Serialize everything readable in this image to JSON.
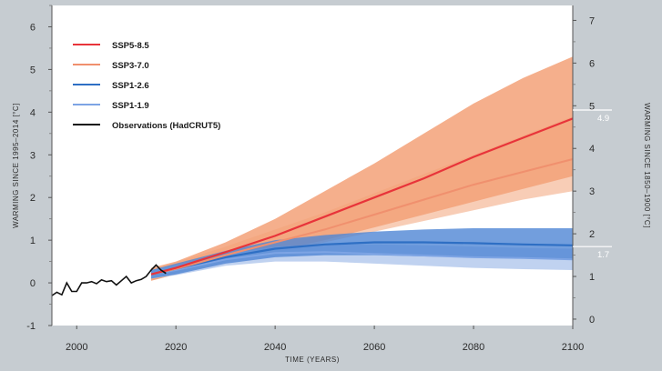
{
  "chart_data": {
    "type": "line",
    "xlabel": "TIME (YEARS)",
    "ylabel_left": "WARMING SINCE 1995–2014 [°C]",
    "ylabel_right": "WARMING SINCE 1850–1900 [°C]",
    "xlim": [
      1995,
      2100
    ],
    "ylim_left": [
      -1,
      6.5
    ],
    "ylim_right": [
      -0.03,
      7.2
    ],
    "right_axis_offset": 0.85,
    "x_ticks": [
      "2000",
      "2020",
      "2040",
      "2060",
      "2080",
      "2100"
    ],
    "y_ticks_left": [
      "-1",
      "0",
      "1",
      "2",
      "3",
      "4",
      "5",
      "6"
    ],
    "y_ticks_right": [
      "0",
      "1",
      "2",
      "3",
      "4",
      "5",
      "6",
      "7"
    ],
    "annotations": [
      {
        "label": "4.9",
        "value_right": 4.9
      },
      {
        "label": "1.7",
        "value_right": 1.7
      }
    ],
    "colors": {
      "ssp585": "#e8343a",
      "ssp370": "#f0906e",
      "ssp126": "#2e6fc4",
      "ssp119": "#7da4e4",
      "obs": "#111111",
      "band_high": "#f3a178",
      "band_high_light": "#f8cab2",
      "band_low": "#4f86d4",
      "band_low_light": "#b9cdee"
    },
    "series": [
      {
        "key": "ssp585",
        "name": "SSP5-8.5",
        "x": [
          2015,
          2020,
          2030,
          2040,
          2050,
          2060,
          2070,
          2080,
          2090,
          2100
        ],
        "values": [
          0.2,
          0.35,
          0.72,
          1.1,
          1.55,
          2.0,
          2.45,
          2.95,
          3.4,
          3.85
        ],
        "band_upper": [
          0.35,
          0.5,
          0.95,
          1.5,
          2.15,
          2.8,
          3.5,
          4.2,
          4.8,
          5.3
        ],
        "band_lower": [
          0.05,
          0.2,
          0.5,
          0.75,
          1.0,
          1.3,
          1.6,
          1.9,
          2.2,
          2.5
        ]
      },
      {
        "key": "ssp370",
        "name": "SSP3-7.0",
        "x": [
          2015,
          2020,
          2030,
          2040,
          2050,
          2060,
          2070,
          2080,
          2090,
          2100
        ],
        "values": [
          0.2,
          0.33,
          0.65,
          0.95,
          1.25,
          1.6,
          1.95,
          2.3,
          2.6,
          2.9
        ],
        "band_upper": [
          0.3,
          0.48,
          0.85,
          1.25,
          1.65,
          2.1,
          2.55,
          3.0,
          3.45,
          3.9
        ],
        "band_lower": [
          0.05,
          0.2,
          0.45,
          0.7,
          0.95,
          1.2,
          1.45,
          1.7,
          1.95,
          2.15
        ]
      },
      {
        "key": "ssp126",
        "name": "SSP1-2.6",
        "x": [
          2015,
          2020,
          2030,
          2040,
          2050,
          2060,
          2070,
          2080,
          2090,
          2100
        ],
        "values": [
          0.2,
          0.33,
          0.6,
          0.8,
          0.9,
          0.95,
          0.95,
          0.93,
          0.9,
          0.88
        ],
        "band_upper": [
          0.3,
          0.45,
          0.75,
          1.0,
          1.12,
          1.2,
          1.25,
          1.28,
          1.28,
          1.28
        ],
        "band_lower": [
          0.1,
          0.2,
          0.45,
          0.6,
          0.65,
          0.65,
          0.62,
          0.6,
          0.58,
          0.55
        ]
      },
      {
        "key": "ssp119",
        "name": "SSP1-1.9",
        "x": [
          2015,
          2020,
          2030,
          2040,
          2050,
          2060,
          2070,
          2080,
          2090,
          2100
        ],
        "values": [
          0.2,
          0.3,
          0.55,
          0.7,
          0.72,
          0.68,
          0.64,
          0.6,
          0.58,
          0.55
        ],
        "band_upper": [
          0.3,
          0.42,
          0.68,
          0.85,
          0.9,
          0.9,
          0.88,
          0.85,
          0.82,
          0.8
        ],
        "band_lower": [
          0.1,
          0.18,
          0.4,
          0.5,
          0.5,
          0.45,
          0.4,
          0.35,
          0.32,
          0.3
        ]
      },
      {
        "key": "obs",
        "name": "Observations (HadCRUT5)",
        "x": [
          1995,
          1996,
          1997,
          1998,
          1999,
          2000,
          2001,
          2002,
          2003,
          2004,
          2005,
          2006,
          2007,
          2008,
          2009,
          2010,
          2011,
          2012,
          2013,
          2014,
          2015,
          2016,
          2017,
          2018
        ],
        "values": [
          -0.3,
          -0.22,
          -0.28,
          0.0,
          -0.2,
          -0.2,
          0.0,
          0.0,
          0.03,
          -0.02,
          0.07,
          0.03,
          0.05,
          -0.05,
          0.05,
          0.15,
          0.0,
          0.05,
          0.08,
          0.15,
          0.3,
          0.42,
          0.3,
          0.22
        ]
      }
    ],
    "legend": [
      {
        "key": "ssp585",
        "label": "SSP5-8.5"
      },
      {
        "key": "ssp370",
        "label": "SSP3-7.0"
      },
      {
        "key": "ssp126",
        "label": "SSP1-2.6"
      },
      {
        "key": "ssp119",
        "label": "SSP1-1.9"
      },
      {
        "key": "obs",
        "label": "Observations (HadCRUT5)"
      }
    ]
  }
}
